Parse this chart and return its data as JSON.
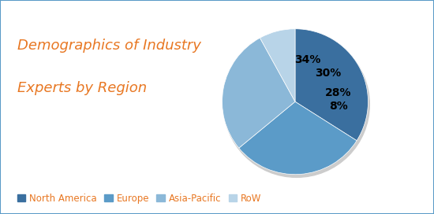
{
  "title_line1": "Demographics of Industry",
  "title_line2": "Experts by Region",
  "title_color": "#E87722",
  "slices": [
    34,
    30,
    28,
    8
  ],
  "labels": [
    "34%",
    "30%",
    "28%",
    "8%"
  ],
  "categories": [
    "North America",
    "Europe",
    "Asia-Pacific",
    "RoW"
  ],
  "colors": [
    "#3A6F9F",
    "#5B9BC8",
    "#8BB8D8",
    "#B8D4E8"
  ],
  "legend_text_color": "#E87722",
  "background_color": "#FFFFFF",
  "border_color": "#5B9BC8",
  "startangle": 90,
  "label_fontsize": 10,
  "legend_fontsize": 8.5,
  "title_fontsize": 13
}
